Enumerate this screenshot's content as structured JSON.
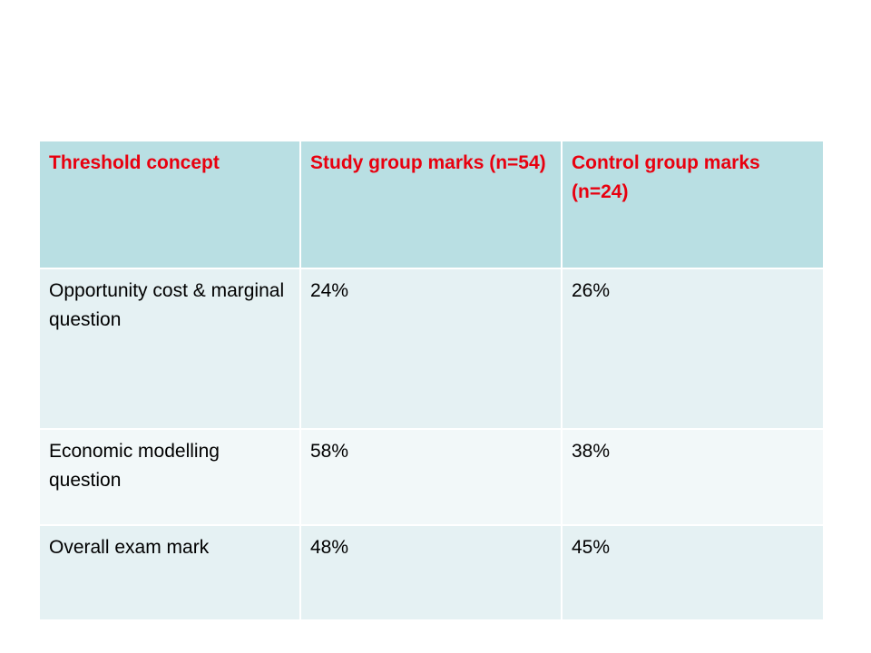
{
  "colors": {
    "header_text": "#e8000f",
    "header_bg": "#b9dfe3",
    "row_dark_bg": "#e5f1f3",
    "row_light_bg": "#f2f8f9"
  },
  "table": {
    "headers": [
      "Threshold concept",
      "Study group marks (n=54)",
      "Control group marks (n=24)"
    ],
    "rows": [
      [
        "Opportunity cost & marginal question",
        "24%",
        "26%"
      ],
      [
        "Economic modelling question",
        "58%",
        "38%"
      ],
      [
        "Overall exam mark",
        "48%",
        "45%"
      ]
    ]
  }
}
